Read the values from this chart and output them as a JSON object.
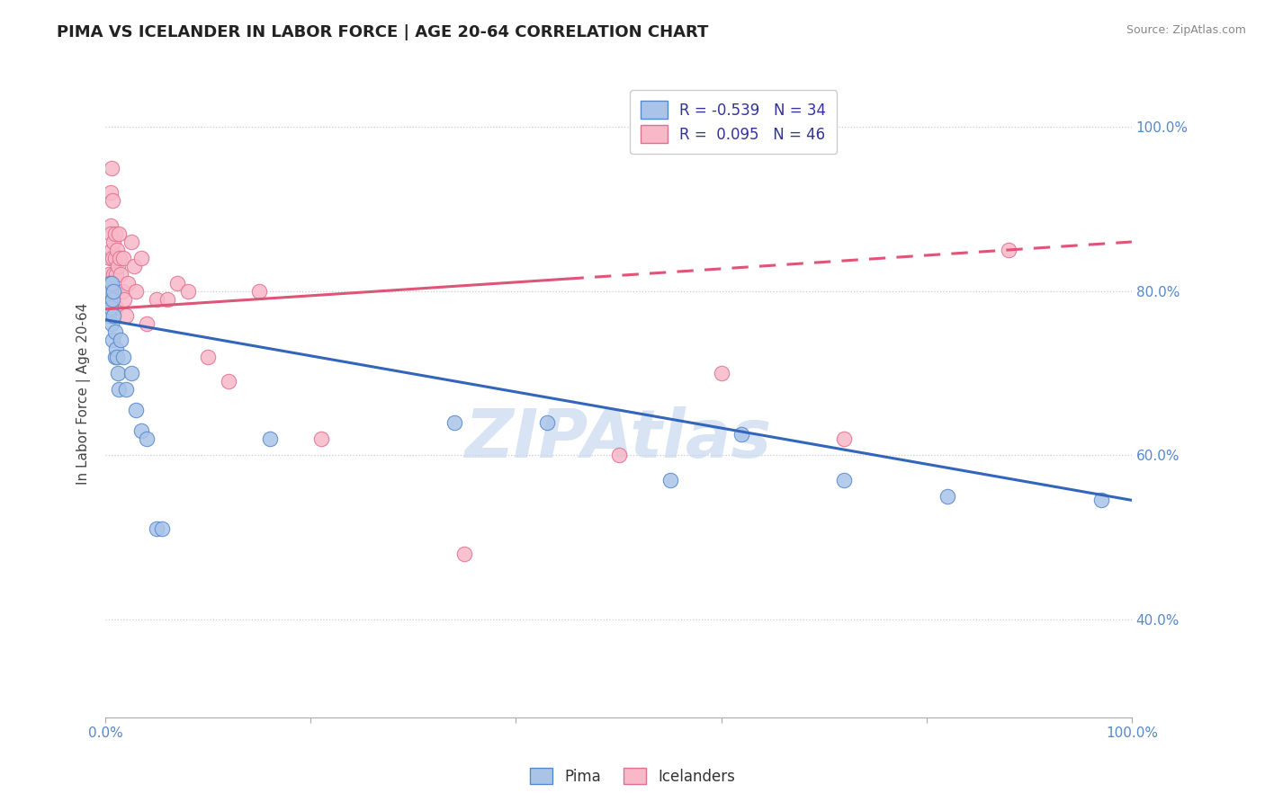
{
  "title": "PIMA VS ICELANDER IN LABOR FORCE | AGE 20-64 CORRELATION CHART",
  "source": "Source: ZipAtlas.com",
  "ylabel": "In Labor Force | Age 20-64",
  "xlim": [
    0.0,
    1.0
  ],
  "ylim": [
    0.28,
    1.07
  ],
  "pima_color": "#aac4e8",
  "pima_edge_color": "#5588cc",
  "pima_line_color": "#3366bb",
  "icelander_color": "#f8b8c8",
  "icelander_edge_color": "#e07090",
  "icelander_line_color": "#dd5577",
  "background_color": "#ffffff",
  "watermark": "ZIPAtlas",
  "watermark_color": "#c8d8f0",
  "grid_color": "#cccccc",
  "yticks": [
    0.4,
    0.6,
    0.8,
    1.0
  ],
  "ytick_labels": [
    "40.0%",
    "60.0%",
    "80.0%",
    "100.0%"
  ],
  "title_fontsize": 13,
  "axis_label_fontsize": 11,
  "tick_fontsize": 11,
  "legend_fontsize": 12,
  "pima_R": -0.539,
  "pima_N": 34,
  "icelander_R": 0.095,
  "icelander_N": 46,
  "pima_line_x0": 0.0,
  "pima_line_y0": 0.765,
  "pima_line_x1": 1.0,
  "pima_line_y1": 0.545,
  "icelander_line_x0": 0.0,
  "icelander_line_y0": 0.778,
  "icelander_line_x1": 1.0,
  "icelander_line_y1": 0.86,
  "pima_x": [
    0.003,
    0.004,
    0.004,
    0.005,
    0.005,
    0.006,
    0.006,
    0.007,
    0.007,
    0.008,
    0.008,
    0.009,
    0.009,
    0.01,
    0.011,
    0.012,
    0.013,
    0.015,
    0.017,
    0.02,
    0.025,
    0.03,
    0.035,
    0.04,
    0.05,
    0.055,
    0.16,
    0.34,
    0.43,
    0.55,
    0.62,
    0.72,
    0.82,
    0.97
  ],
  "pima_y": [
    0.77,
    0.79,
    0.81,
    0.8,
    0.78,
    0.76,
    0.81,
    0.74,
    0.79,
    0.77,
    0.8,
    0.72,
    0.75,
    0.73,
    0.72,
    0.7,
    0.68,
    0.74,
    0.72,
    0.68,
    0.7,
    0.655,
    0.63,
    0.62,
    0.51,
    0.51,
    0.62,
    0.64,
    0.64,
    0.57,
    0.625,
    0.57,
    0.55,
    0.545
  ],
  "icelander_x": [
    0.003,
    0.004,
    0.004,
    0.005,
    0.005,
    0.005,
    0.006,
    0.006,
    0.007,
    0.007,
    0.007,
    0.008,
    0.008,
    0.009,
    0.009,
    0.009,
    0.01,
    0.01,
    0.011,
    0.012,
    0.013,
    0.014,
    0.015,
    0.016,
    0.017,
    0.018,
    0.02,
    0.022,
    0.025,
    0.028,
    0.03,
    0.035,
    0.04,
    0.05,
    0.06,
    0.07,
    0.08,
    0.1,
    0.12,
    0.15,
    0.21,
    0.35,
    0.5,
    0.6,
    0.72,
    0.88
  ],
  "icelander_y": [
    0.82,
    0.84,
    0.8,
    0.88,
    0.92,
    0.87,
    0.85,
    0.95,
    0.91,
    0.84,
    0.78,
    0.86,
    0.82,
    0.87,
    0.84,
    0.8,
    0.82,
    0.78,
    0.85,
    0.83,
    0.87,
    0.84,
    0.82,
    0.8,
    0.84,
    0.79,
    0.77,
    0.81,
    0.86,
    0.83,
    0.8,
    0.84,
    0.76,
    0.79,
    0.79,
    0.81,
    0.8,
    0.72,
    0.69,
    0.8,
    0.62,
    0.48,
    0.6,
    0.7,
    0.62,
    0.85
  ]
}
